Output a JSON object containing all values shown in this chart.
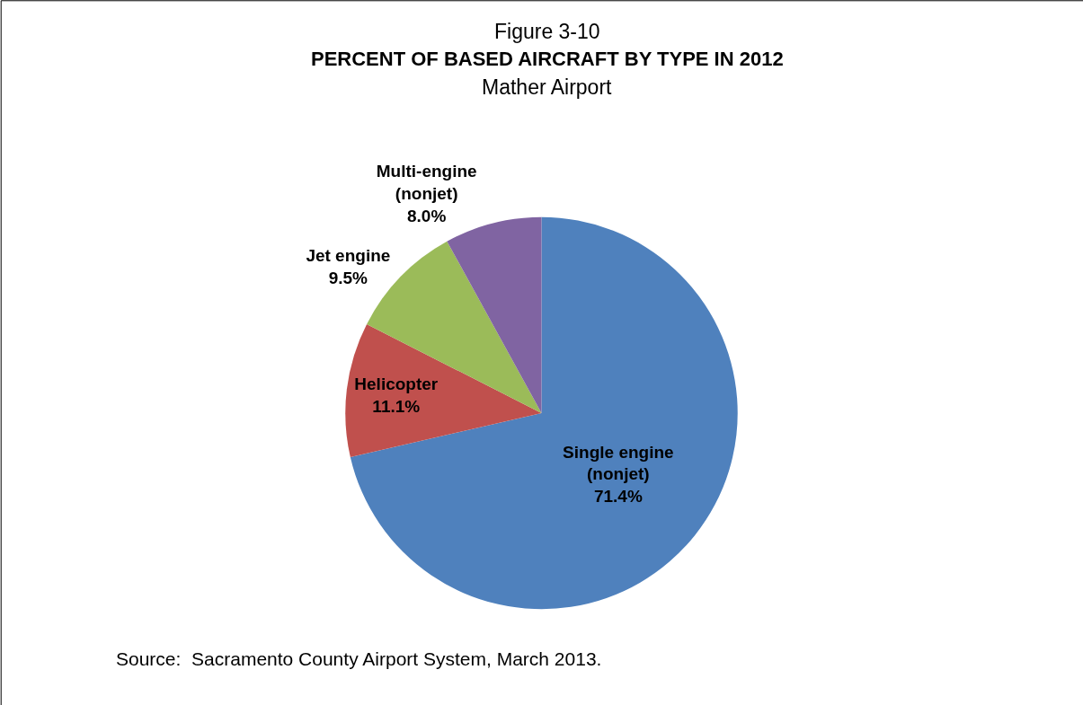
{
  "chart_data": {
    "type": "pie",
    "title": "PERCENT OF BASED AIRCRAFT BY TYPE IN 2012",
    "subtitle": "Mather Airport",
    "annotations": [
      "Figure 3-10",
      "Source:  Sacramento County Airport System, March 2013."
    ],
    "categories": [
      "Single engine\n(nonjet)",
      "Helicopter",
      "Jet engine",
      "Multi-engine\n(nonjet)"
    ],
    "values": [
      71.4,
      11.1,
      9.5,
      8.0
    ],
    "value_labels": [
      "71.4%",
      "11.1%",
      "9.5%",
      "8.0%"
    ],
    "colors": [
      "#4f81bd",
      "#c0504d",
      "#9bbb59",
      "#8064a2"
    ],
    "legend": false
  }
}
